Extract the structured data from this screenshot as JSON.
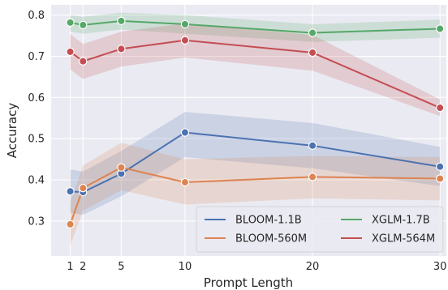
{
  "chart_data": {
    "type": "line",
    "xlabel": "Prompt Length",
    "ylabel": "Accuracy",
    "x": [
      1,
      2,
      5,
      10,
      20,
      30
    ],
    "xlim": [
      -0.5,
      30.5
    ],
    "ylim": [
      0.215,
      0.825
    ],
    "xticks": [
      1,
      2,
      5,
      10,
      20,
      30
    ],
    "yticks": [
      0.3,
      0.4,
      0.5,
      0.6,
      0.7,
      0.8
    ],
    "ytick_labels": [
      "0.3",
      "0.4",
      "0.5",
      "0.6",
      "0.7",
      "0.8"
    ],
    "grid": true,
    "legend_position": "lower-right",
    "series": [
      {
        "name": "BLOOM-1.1B",
        "color": "#4c72b0",
        "values": [
          0.372,
          0.37,
          0.415,
          0.515,
          0.483,
          0.432
        ],
        "lower": [
          0.32,
          0.315,
          0.36,
          0.455,
          0.428,
          0.385
        ],
        "upper": [
          0.425,
          0.42,
          0.47,
          0.565,
          0.538,
          0.48
        ]
      },
      {
        "name": "BLOOM-560M",
        "color": "#dd8452",
        "values": [
          0.292,
          0.38,
          0.43,
          0.394,
          0.407,
          0.403
        ],
        "lower": [
          0.24,
          0.325,
          0.375,
          0.34,
          0.355,
          0.35
        ],
        "upper": [
          0.345,
          0.435,
          0.49,
          0.45,
          0.458,
          0.455
        ]
      },
      {
        "name": "XGLM-1.7B",
        "color": "#55a868",
        "values": [
          0.782,
          0.776,
          0.786,
          0.778,
          0.757,
          0.767
        ],
        "lower": [
          0.76,
          0.755,
          0.765,
          0.755,
          0.735,
          0.745
        ],
        "upper": [
          0.8,
          0.796,
          0.806,
          0.8,
          0.778,
          0.789
        ]
      },
      {
        "name": "XGLM-564M",
        "color": "#c44e52",
        "values": [
          0.711,
          0.688,
          0.718,
          0.739,
          0.709,
          0.575
        ],
        "lower": [
          0.668,
          0.645,
          0.675,
          0.697,
          0.665,
          0.555
        ],
        "upper": [
          0.754,
          0.73,
          0.76,
          0.78,
          0.752,
          0.595
        ]
      }
    ],
    "legend": {
      "columns": 2,
      "entries": [
        "BLOOM-1.1B",
        "XGLM-1.7B",
        "BLOOM-560M",
        "XGLM-564M"
      ]
    }
  },
  "colors": {
    "plot_background": "#eaeaf2",
    "grid": "#ffffff",
    "text": "#262626"
  }
}
